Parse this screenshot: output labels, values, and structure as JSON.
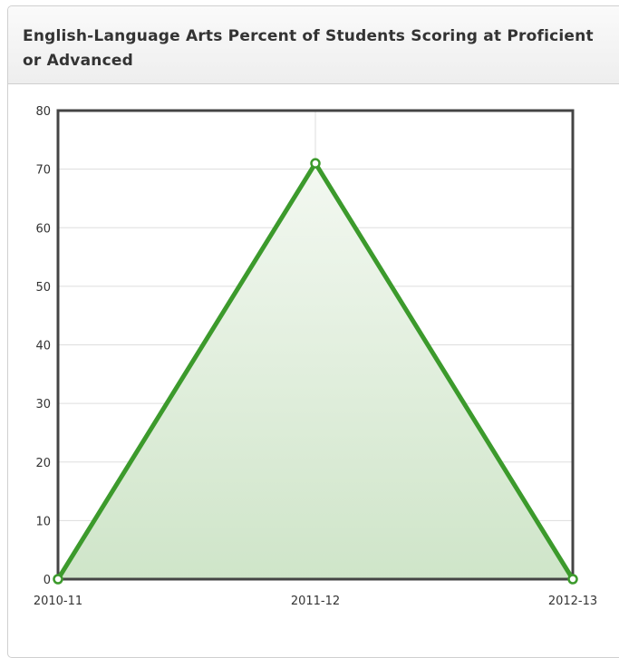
{
  "panel": {
    "title": "English-Language Arts Percent of Students Scoring at Proficient or Advanced"
  },
  "chart_data": {
    "type": "area",
    "title": "English-Language Arts Percent of Students Scoring at Proficient or Advanced",
    "xlabel": "",
    "ylabel": "",
    "categories": [
      "2010-11",
      "2011-12",
      "2012-13"
    ],
    "series": [
      {
        "values": [
          0,
          71,
          0
        ]
      }
    ],
    "ylim": [
      0,
      80
    ],
    "yticks": [
      0,
      10,
      20,
      30,
      40,
      50,
      60,
      70,
      80
    ],
    "grid": true,
    "legend": "none",
    "colors": {
      "line": "#3c9a2c",
      "fill_top": "#f3f8f1",
      "fill_bottom": "#cfe5c9",
      "grid": "#dddddd",
      "frame": "#444444",
      "marker_fill": "#ffffff"
    }
  }
}
